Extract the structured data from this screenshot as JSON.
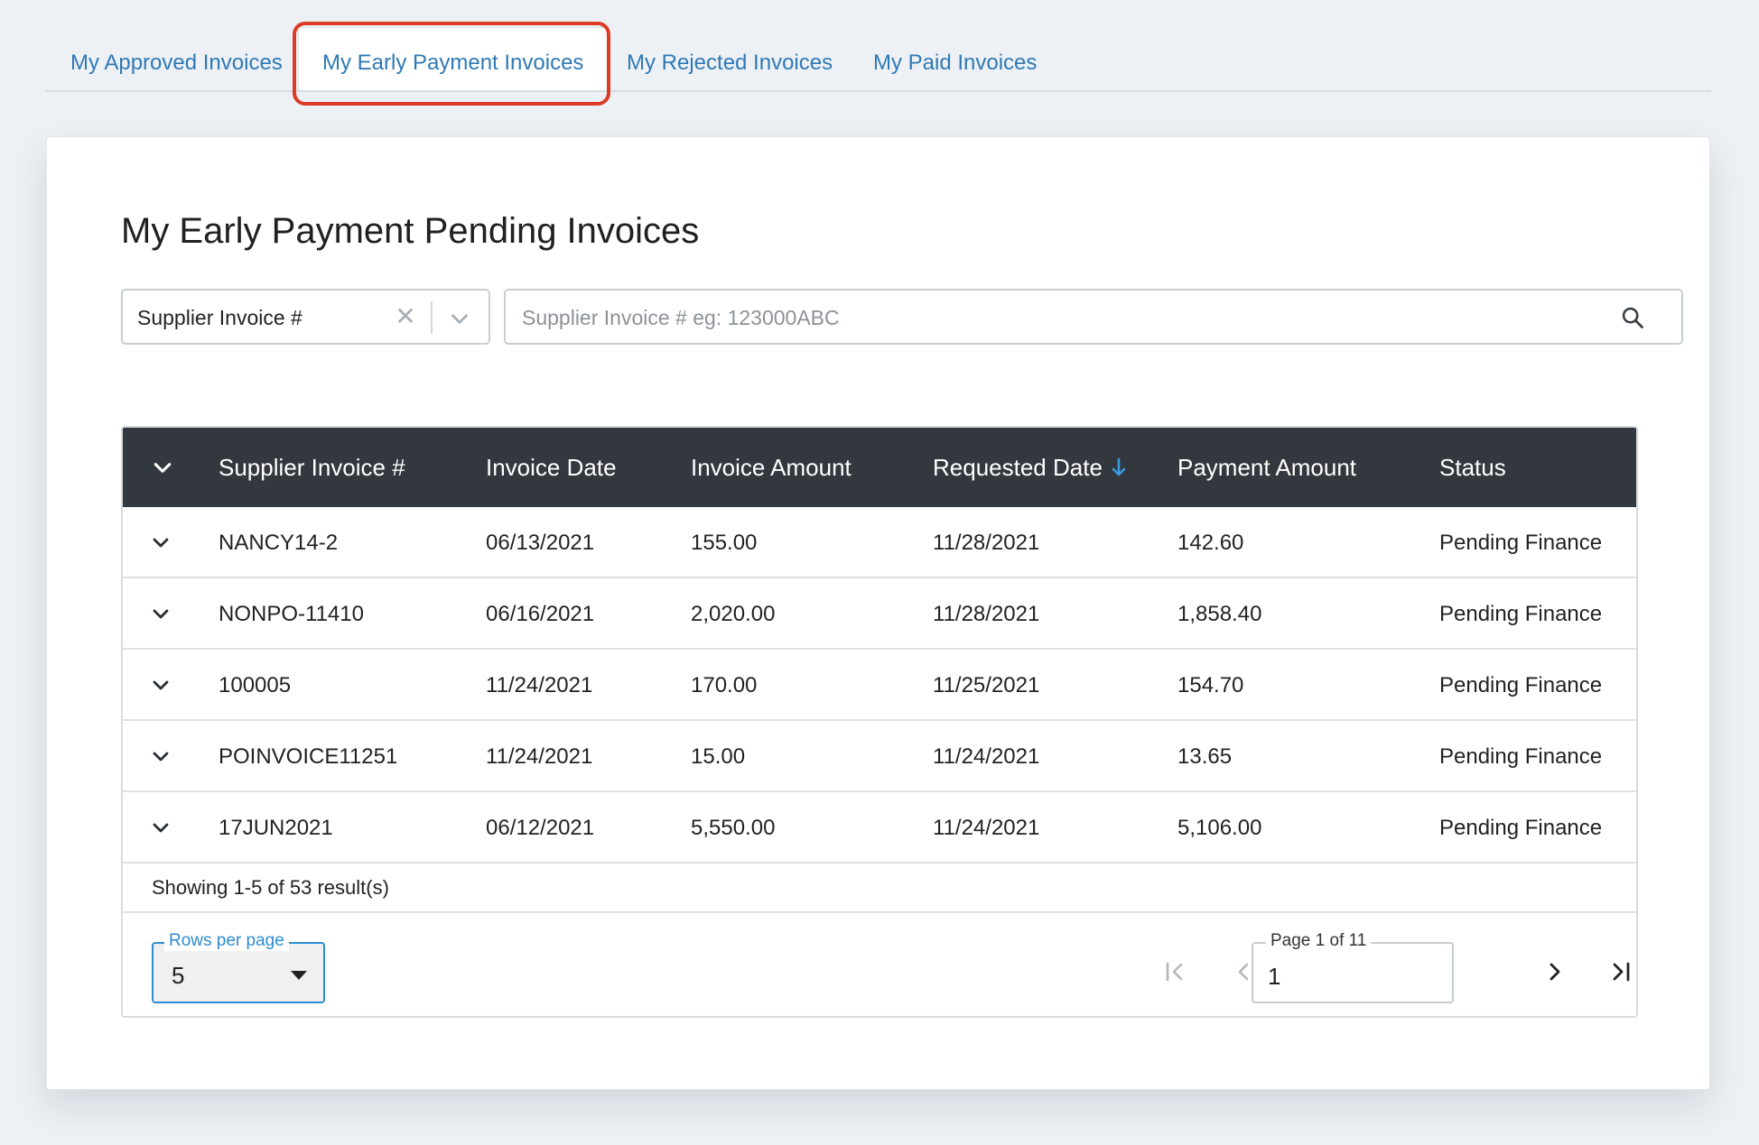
{
  "tabs": [
    {
      "label": "My Approved Invoices",
      "active": false
    },
    {
      "label": "My Early Payment Invoices",
      "active": true
    },
    {
      "label": "My Rejected Invoices",
      "active": false
    },
    {
      "label": "My Paid Invoices",
      "active": false
    }
  ],
  "card": {
    "title": "My Early Payment Pending Invoices"
  },
  "filter": {
    "selected": "Supplier Invoice #"
  },
  "search": {
    "placeholder": "Supplier Invoice # eg: 123000ABC",
    "value": ""
  },
  "table": {
    "columns": [
      "Supplier Invoice #",
      "Invoice Date",
      "Invoice Amount",
      "Requested Date",
      "Payment Amount",
      "Status"
    ],
    "sorted_column": "Requested Date",
    "sort_direction": "descending",
    "rows": [
      {
        "invoice": "NANCY14-2",
        "invoice_date": "06/13/2021",
        "invoice_amount": "155.00",
        "requested_date": "11/28/2021",
        "payment_amount": "142.60",
        "status": "Pending Finance"
      },
      {
        "invoice": "NONPO-11410",
        "invoice_date": "06/16/2021",
        "invoice_amount": "2,020.00",
        "requested_date": "11/28/2021",
        "payment_amount": "1,858.40",
        "status": "Pending Finance"
      },
      {
        "invoice": "100005",
        "invoice_date": "11/24/2021",
        "invoice_amount": "170.00",
        "requested_date": "11/25/2021",
        "payment_amount": "154.70",
        "status": "Pending Finance"
      },
      {
        "invoice": "POINVOICE11251",
        "invoice_date": "11/24/2021",
        "invoice_amount": "15.00",
        "requested_date": "11/24/2021",
        "payment_amount": "13.65",
        "status": "Pending Finance"
      },
      {
        "invoice": "17JUN2021",
        "invoice_date": "06/12/2021",
        "invoice_amount": "5,550.00",
        "requested_date": "11/24/2021",
        "payment_amount": "5,106.00",
        "status": "Pending Finance"
      }
    ],
    "summary": "Showing 1-5 of 53 result(s)"
  },
  "pagination": {
    "rows_per_page_label": "Rows per page",
    "rows_per_page_value": "5",
    "page_label": "Page 1 of 11",
    "page_value": "1"
  },
  "colors": {
    "tab_text": "#2f79b5",
    "highlight": "#dc3b26",
    "header_bg": "#32383d",
    "accent": "#2d8ccf"
  }
}
